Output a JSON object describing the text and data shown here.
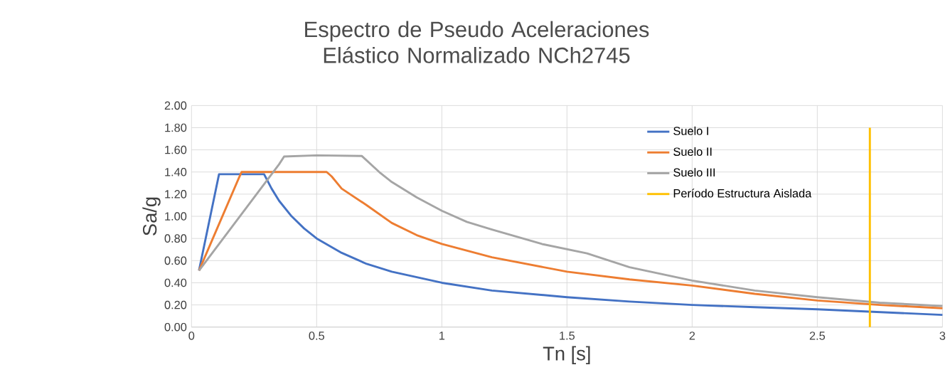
{
  "chart_data": {
    "type": "line",
    "title": "Espectro de Pseudo Aceleraciones Elástico Normalizado NCh2745",
    "xlabel": "Tn [s]",
    "ylabel": "Sa/g",
    "xlim": [
      0,
      3
    ],
    "xticks": [
      0,
      0.5,
      1,
      1.5,
      2,
      2.5,
      3
    ],
    "ylim": [
      0,
      2
    ],
    "yticks": [
      {
        "value": 0,
        "label": "0.00"
      },
      {
        "value": 0.2,
        "label": "0.20"
      },
      {
        "value": 0.4,
        "label": "0.40"
      },
      {
        "value": 0.6,
        "label": "0.60"
      },
      {
        "value": 0.8,
        "label": "0.80"
      },
      {
        "value": 1.0,
        "label": "1.00"
      },
      {
        "value": 1.2,
        "label": "1.20"
      },
      {
        "value": 1.4,
        "label": "1.40"
      },
      {
        "value": 1.6,
        "label": "1.60"
      },
      {
        "value": 1.8,
        "label": "1.80"
      },
      {
        "value": 2.0,
        "label": "2.00"
      }
    ],
    "grid": true,
    "legend": "top right",
    "marker": "none",
    "line_style": "solid",
    "series": [
      {
        "name": "Suelo I",
        "color": "#4472c4",
        "x": [
          0.03,
          0.11,
          0.29,
          0.32,
          0.35,
          0.4,
          0.45,
          0.5,
          0.6,
          0.7,
          0.8,
          1.0,
          1.2,
          1.5,
          1.75,
          2.0,
          2.25,
          2.5,
          2.75,
          3.0
        ],
        "values": [
          0.51,
          1.38,
          1.38,
          1.25,
          1.14,
          1.0,
          0.89,
          0.8,
          0.67,
          0.57,
          0.5,
          0.4,
          0.33,
          0.27,
          0.23,
          0.2,
          0.18,
          0.16,
          0.135,
          0.11
        ]
      },
      {
        "name": "Suelo II",
        "color": "#ed7d31",
        "x": [
          0.03,
          0.19,
          0.2,
          0.54,
          0.56,
          0.6,
          0.7,
          0.8,
          0.9,
          1.0,
          1.2,
          1.5,
          1.75,
          2.0,
          2.25,
          2.5,
          2.75,
          3.0
        ],
        "values": [
          0.51,
          1.35,
          1.4,
          1.4,
          1.36,
          1.25,
          1.1,
          0.94,
          0.83,
          0.75,
          0.63,
          0.5,
          0.43,
          0.375,
          0.3,
          0.24,
          0.2,
          0.17
        ]
      },
      {
        "name": "Suelo III",
        "color": "#a5a5a5",
        "x": [
          0.03,
          0.35,
          0.37,
          0.5,
          0.68,
          0.75,
          0.8,
          0.9,
          1.0,
          1.1,
          1.2,
          1.4,
          1.58,
          1.75,
          2.0,
          2.25,
          2.5,
          2.75,
          3.0
        ],
        "values": [
          0.51,
          1.47,
          1.54,
          1.55,
          1.545,
          1.4,
          1.31,
          1.17,
          1.05,
          0.95,
          0.88,
          0.75,
          0.665,
          0.54,
          0.42,
          0.33,
          0.27,
          0.22,
          0.19
        ]
      },
      {
        "name": "Período Estructura Aislada",
        "color": "#ffc000",
        "x": [
          2.71,
          2.71
        ],
        "values": [
          0,
          1.8
        ]
      }
    ]
  }
}
